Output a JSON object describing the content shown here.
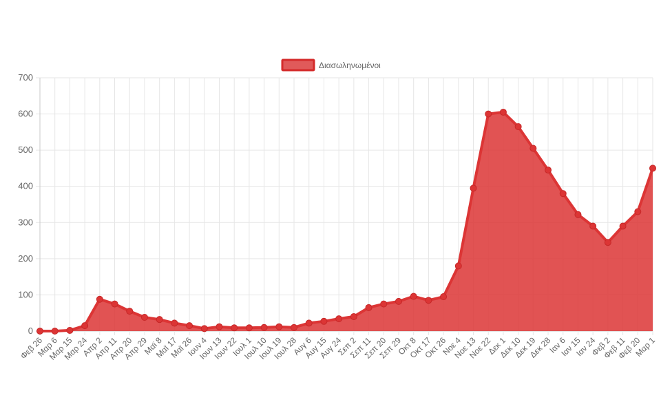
{
  "chart_data": {
    "type": "area",
    "title": "",
    "xlabel": "",
    "ylabel": "",
    "ylim": [
      0,
      700
    ],
    "yticks": [
      0,
      100,
      200,
      300,
      400,
      500,
      600,
      700
    ],
    "grid": true,
    "legend": {
      "position": "top-center",
      "entries": [
        "Διασωληνωμένοι"
      ]
    },
    "categories": [
      "Φεβ 26",
      "Μαρ 6",
      "Μαρ 15",
      "Μαρ 24",
      "Απρ 2",
      "Απρ 11",
      "Απρ 20",
      "Απρ 29",
      "Μαϊ 8",
      "Μαϊ 17",
      "Μαϊ 26",
      "Ιουν 4",
      "Ιουν 13",
      "Ιουν 22",
      "Ιουλ 1",
      "Ιουλ 10",
      "Ιουλ 19",
      "Ιουλ 28",
      "Αυγ 6",
      "Αυγ 15",
      "Αυγ 24",
      "Σεπ 2",
      "Σεπ 11",
      "Σεπ 20",
      "Σεπ 29",
      "Οκτ 8",
      "Οκτ 17",
      "Οκτ 26",
      "Νοε 4",
      "Νοε 13",
      "Νοε 22",
      "Δεκ 1",
      "Δεκ 10",
      "Δεκ 19",
      "Δεκ 28",
      "Ιαν 6",
      "Ιαν 15",
      "Ιαν 24",
      "Φεβ 2",
      "Φεβ 11",
      "Φεβ 20",
      "Μαρ 1"
    ],
    "series": [
      {
        "name": "Διασωληνωμένοι",
        "color": "#dc3535",
        "fill": "#dc3535",
        "day_step": 9,
        "values": [
          0,
          0,
          2,
          15,
          88,
          75,
          55,
          38,
          32,
          22,
          15,
          7,
          12,
          9,
          9,
          10,
          12,
          10,
          22,
          27,
          34,
          40,
          65,
          75,
          82,
          96,
          85,
          95,
          180,
          395,
          600,
          605,
          565,
          505,
          445,
          380,
          322,
          290,
          245,
          290,
          330,
          450
        ]
      }
    ]
  }
}
